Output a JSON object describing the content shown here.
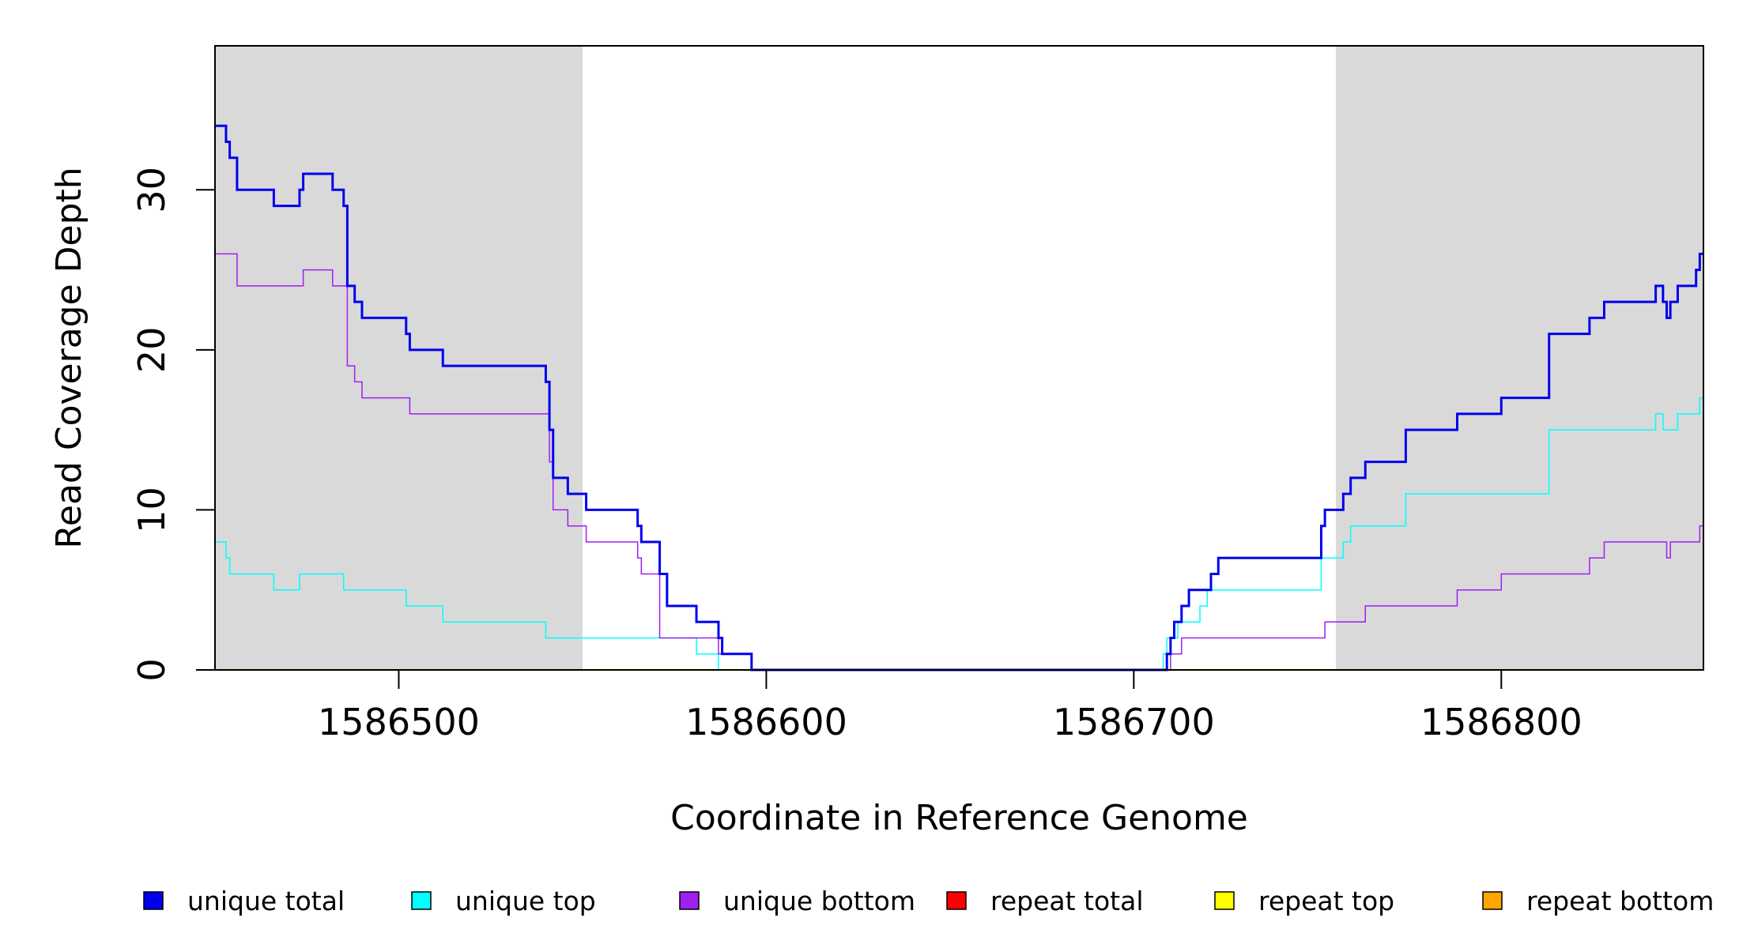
{
  "chart_data": {
    "type": "line",
    "title": "",
    "xlabel": "Coordinate in Reference Genome",
    "ylabel": "Read Coverage Depth",
    "xlim": [
      1586450,
      1586855
    ],
    "ylim": [
      0,
      39
    ],
    "x_ticks": [
      1586500,
      1586600,
      1586700,
      1586800
    ],
    "y_ticks": [
      0,
      10,
      20,
      30
    ],
    "x_tick_labels": [
      "1586500",
      "1586600",
      "1586700",
      "1586800"
    ],
    "y_tick_labels": [
      "0",
      "10",
      "20",
      "30"
    ],
    "shaded_regions": [
      [
        1586450,
        1586550
      ],
      [
        1586755,
        1586855
      ]
    ],
    "shade_color": "#d9d9d9",
    "legend_position": "bottom",
    "series": [
      {
        "name": "unique total",
        "color": "#0000ee",
        "width": "thick",
        "points": [
          [
            1586450,
            34
          ],
          [
            1586453,
            33
          ],
          [
            1586454,
            32
          ],
          [
            1586456,
            30
          ],
          [
            1586466,
            29
          ],
          [
            1586473,
            30
          ],
          [
            1586474,
            31
          ],
          [
            1586482,
            30
          ],
          [
            1586485,
            29
          ],
          [
            1586486,
            24
          ],
          [
            1586488,
            23
          ],
          [
            1586490,
            22
          ],
          [
            1586502,
            21
          ],
          [
            1586503,
            20
          ],
          [
            1586512,
            19
          ],
          [
            1586540,
            18
          ],
          [
            1586541,
            15
          ],
          [
            1586542,
            12
          ],
          [
            1586546,
            11
          ],
          [
            1586551,
            10
          ],
          [
            1586565,
            9
          ],
          [
            1586566,
            8
          ],
          [
            1586571,
            6
          ],
          [
            1586573,
            4
          ],
          [
            1586581,
            3
          ],
          [
            1586587,
            2
          ],
          [
            1586588,
            1
          ],
          [
            1586596,
            0
          ],
          [
            1586709,
            1
          ],
          [
            1586710,
            2
          ],
          [
            1586711,
            3
          ],
          [
            1586713,
            4
          ],
          [
            1586715,
            5
          ],
          [
            1586721,
            6
          ],
          [
            1586723,
            7
          ],
          [
            1586751,
            9
          ],
          [
            1586752,
            10
          ],
          [
            1586757,
            11
          ],
          [
            1586759,
            12
          ],
          [
            1586763,
            13
          ],
          [
            1586774,
            15
          ],
          [
            1586788,
            16
          ],
          [
            1586800,
            17
          ],
          [
            1586813,
            21
          ],
          [
            1586824,
            22
          ],
          [
            1586828,
            23
          ],
          [
            1586842,
            24
          ],
          [
            1586844,
            23
          ],
          [
            1586845,
            22
          ],
          [
            1586846,
            23
          ],
          [
            1586848,
            24
          ],
          [
            1586853,
            25
          ],
          [
            1586854,
            26
          ],
          [
            1586855,
            26
          ]
        ]
      },
      {
        "name": "unique top",
        "color": "#00ffff",
        "width": "thin",
        "points": [
          [
            1586450,
            8
          ],
          [
            1586453,
            7
          ],
          [
            1586454,
            6
          ],
          [
            1586466,
            5
          ],
          [
            1586473,
            6
          ],
          [
            1586485,
            5
          ],
          [
            1586502,
            4
          ],
          [
            1586512,
            3
          ],
          [
            1586540,
            2
          ],
          [
            1586581,
            1
          ],
          [
            1586587,
            0
          ],
          [
            1586708,
            1
          ],
          [
            1586709,
            2
          ],
          [
            1586712,
            3
          ],
          [
            1586718,
            4
          ],
          [
            1586720,
            5
          ],
          [
            1586751,
            7
          ],
          [
            1586757,
            8
          ],
          [
            1586759,
            9
          ],
          [
            1586774,
            11
          ],
          [
            1586813,
            15
          ],
          [
            1586842,
            16
          ],
          [
            1586844,
            15
          ],
          [
            1586848,
            16
          ],
          [
            1586854,
            17
          ],
          [
            1586855,
            17
          ]
        ]
      },
      {
        "name": "unique bottom",
        "color": "#a020f0",
        "width": "thin",
        "points": [
          [
            1586450,
            26
          ],
          [
            1586456,
            24
          ],
          [
            1586474,
            25
          ],
          [
            1586482,
            24
          ],
          [
            1586486,
            19
          ],
          [
            1586488,
            18
          ],
          [
            1586490,
            17
          ],
          [
            1586503,
            16
          ],
          [
            1586541,
            13
          ],
          [
            1586542,
            10
          ],
          [
            1586546,
            9
          ],
          [
            1586551,
            8
          ],
          [
            1586565,
            7
          ],
          [
            1586566,
            6
          ],
          [
            1586571,
            2
          ],
          [
            1586587,
            1
          ],
          [
            1586596,
            0
          ],
          [
            1586710,
            1
          ],
          [
            1586713,
            2
          ],
          [
            1586752,
            3
          ],
          [
            1586763,
            4
          ],
          [
            1586788,
            5
          ],
          [
            1586800,
            6
          ],
          [
            1586824,
            7
          ],
          [
            1586828,
            8
          ],
          [
            1586845,
            7
          ],
          [
            1586846,
            8
          ],
          [
            1586854,
            9
          ],
          [
            1586855,
            9
          ]
        ]
      },
      {
        "name": "repeat total",
        "color": "#ff0000",
        "width": "thin",
        "points": [
          [
            1586450,
            0
          ],
          [
            1586855,
            0
          ]
        ]
      },
      {
        "name": "repeat top",
        "color": "#ffff00",
        "width": "thin",
        "points": [
          [
            1586450,
            0
          ],
          [
            1586855,
            0
          ]
        ]
      },
      {
        "name": "repeat bottom",
        "color": "#ffa500",
        "width": "medium",
        "points": [
          [
            1586450,
            0
          ],
          [
            1586855,
            0
          ]
        ]
      }
    ]
  }
}
